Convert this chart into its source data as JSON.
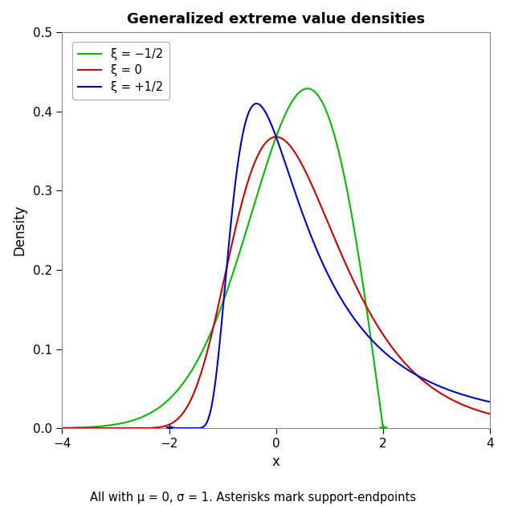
{
  "title": "Generalized extreme value densities",
  "xlabel": "x",
  "ylabel": "Density",
  "subtitle": "All with μ = 0, σ = 1. Asterisks mark support-endpoints",
  "xlim": [
    -4,
    4
  ],
  "ylim": [
    0,
    0.5
  ],
  "xticks": [
    -4,
    -2,
    0,
    2,
    4
  ],
  "yticks": [
    0.0,
    0.1,
    0.2,
    0.3,
    0.4,
    0.5
  ],
  "mu": 0,
  "sigma": 1,
  "xi_values": [
    -0.5,
    0,
    0.5
  ],
  "colors": [
    "#00bb00",
    "#cc0000",
    "#0000cc"
  ],
  "legend_labels": [
    "ξ = −1/2",
    "ξ = 0",
    "ξ = +1/2"
  ],
  "linewidth": 1.5,
  "figsize": [
    6.3,
    6.3
  ],
  "dpi": 100
}
